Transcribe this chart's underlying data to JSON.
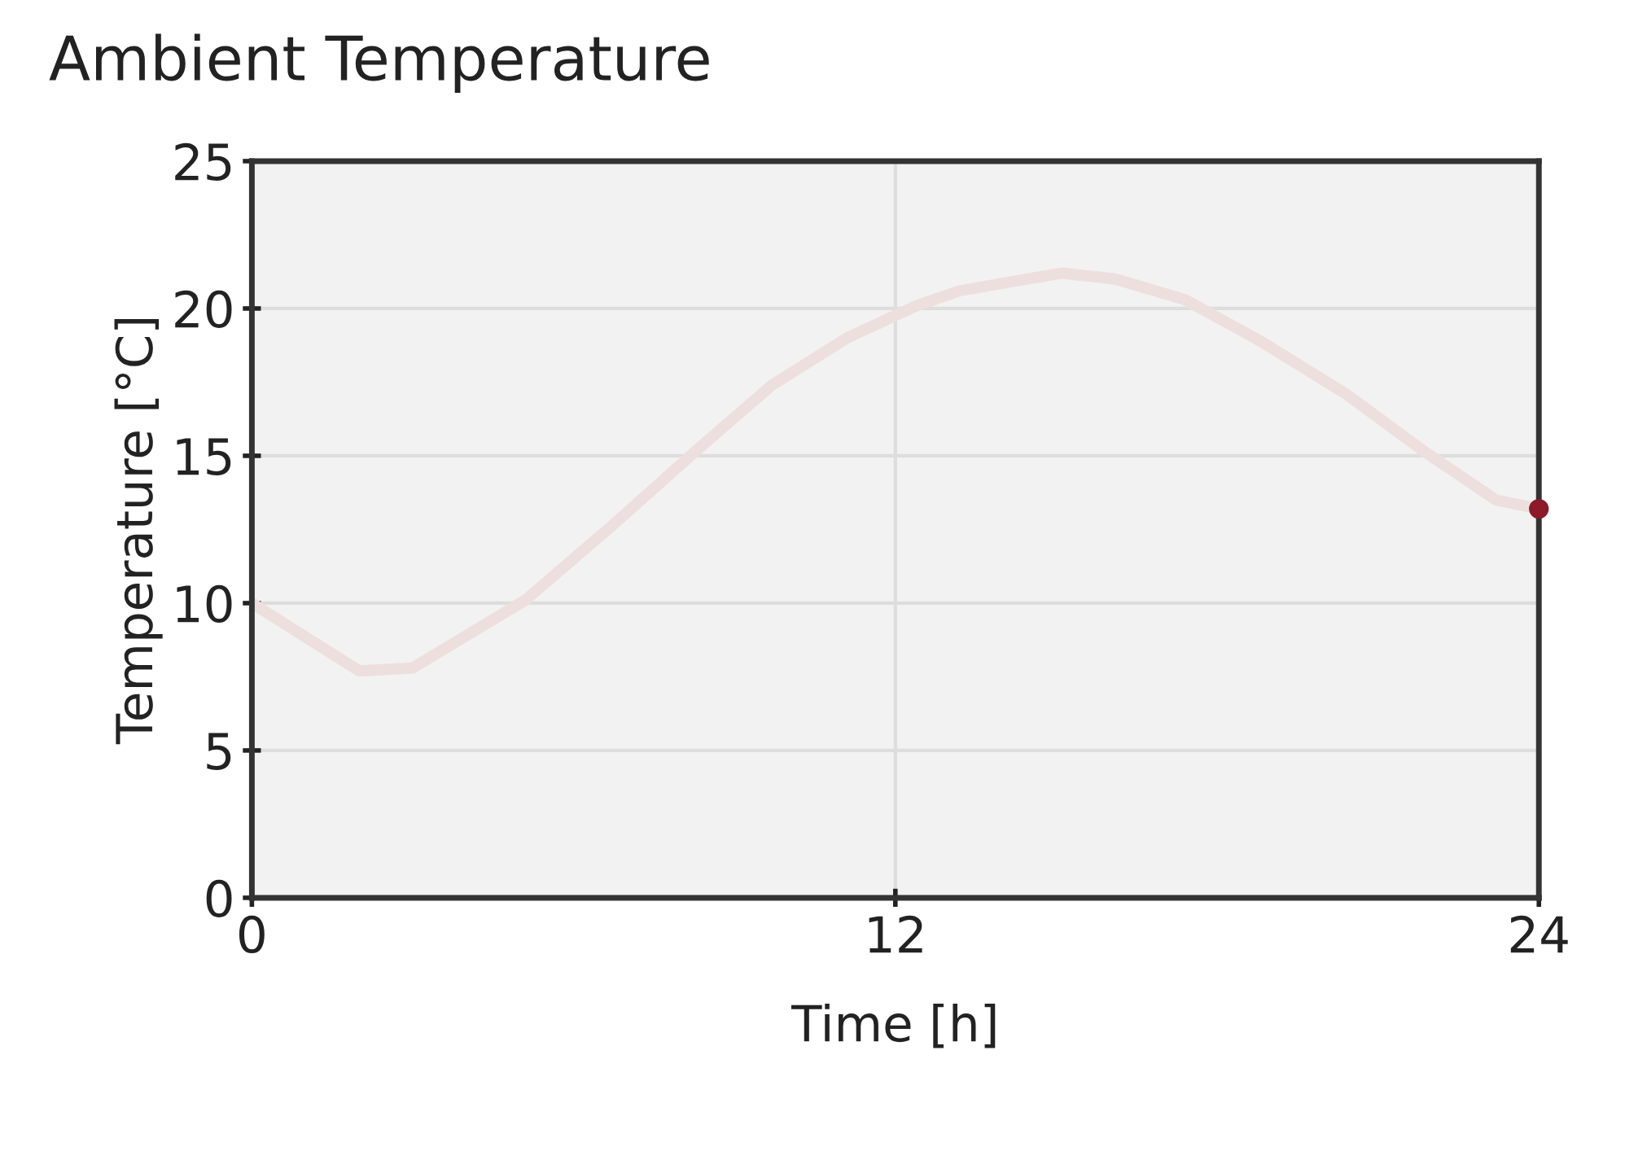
{
  "chart_data": {
    "type": "line",
    "title": "Ambient Temperature",
    "xlabel": "Time [h]",
    "ylabel": "Temperature [°C]",
    "series": [
      {
        "color": "#eedfdf",
        "x": [
          0,
          2.0,
          3.0,
          5.1,
          6.7,
          8.3,
          9.7,
          11.1,
          12.4,
          13.2,
          15.1,
          16.1,
          17.4,
          18.8,
          20.4,
          21.9,
          23.2,
          24
        ],
        "values": [
          10,
          7.7,
          7.8,
          10.1,
          12.6,
          15.2,
          17.4,
          19.0,
          20.1,
          20.6,
          21.2,
          21.0,
          20.3,
          18.9,
          17.1,
          15.1,
          13.5,
          13.2
        ]
      },
      {
        "type": "scatter",
        "color": "#8b1a2a",
        "x": [
          24
        ],
        "values": [
          13.2
        ]
      }
    ],
    "xlim": [
      0,
      24
    ],
    "xticks": [
      0,
      12,
      24
    ],
    "ylim": [
      0,
      25
    ],
    "yticks": [
      0,
      5,
      10,
      15,
      20,
      25
    ],
    "grid": true
  }
}
